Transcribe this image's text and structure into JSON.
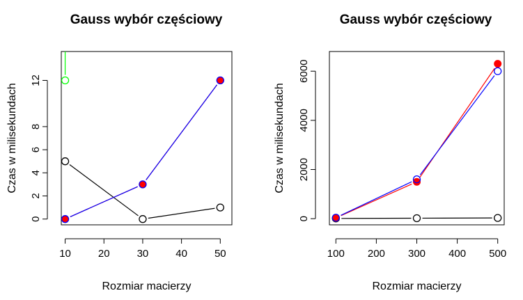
{
  "chart_data": [
    {
      "type": "line",
      "title": "Gauss wybór częściowy",
      "xlabel": "Rozmiar macierzy",
      "ylabel": "Czas w milisekundach",
      "xlim": [
        9,
        53
      ],
      "ylim": [
        -0.5,
        14.5
      ],
      "xticks": [
        10,
        20,
        30,
        40,
        50
      ],
      "yticks": [
        0,
        2,
        4,
        6,
        8,
        12
      ],
      "grid": false,
      "series": [
        {
          "color": "#000000",
          "marker": "open",
          "x": [
            10,
            30,
            50
          ],
          "y": [
            5,
            0,
            1
          ]
        },
        {
          "color": "#ff0000",
          "marker": "filled",
          "x": [
            10,
            30,
            50
          ],
          "y": [
            0,
            3,
            12
          ]
        },
        {
          "color": "#0000ff",
          "marker": "open",
          "x": [
            10,
            30,
            50
          ],
          "y": [
            0,
            3,
            12
          ]
        },
        {
          "color": "#00ff00",
          "marker": "open",
          "x": [
            10
          ],
          "y": [
            12
          ],
          "extends_above": true
        }
      ]
    },
    {
      "type": "line",
      "title": "Gauss wybór częściowy",
      "xlabel": "Rozmiar macierzy",
      "ylabel": "Czas w milisekundach",
      "xlim": [
        84,
        516
      ],
      "ylim": [
        -250,
        6800
      ],
      "xticks": [
        100,
        200,
        300,
        400,
        500
      ],
      "yticks": [
        0,
        2000,
        4000,
        6000
      ],
      "grid": false,
      "series": [
        {
          "color": "#000000",
          "marker": "open",
          "x": [
            100,
            300,
            500
          ],
          "y": [
            10,
            20,
            30
          ]
        },
        {
          "color": "#ff0000",
          "marker": "filled",
          "x": [
            100,
            300,
            500
          ],
          "y": [
            30,
            1500,
            6300
          ]
        },
        {
          "color": "#0000ff",
          "marker": "open",
          "x": [
            100,
            300,
            500
          ],
          "y": [
            40,
            1600,
            6000
          ]
        }
      ]
    }
  ]
}
